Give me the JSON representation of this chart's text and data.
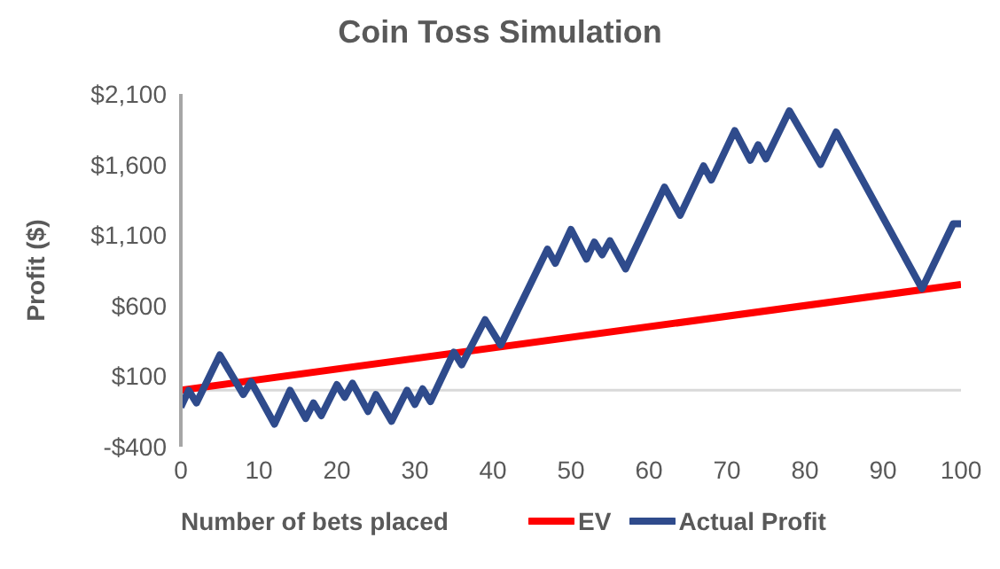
{
  "chart_data": {
    "type": "line",
    "title": "Coin Toss Simulation",
    "xlabel": "Number of bets placed",
    "ylabel": "Profit ($)",
    "xlim": [
      0,
      100
    ],
    "xticks": [
      0,
      10,
      20,
      30,
      40,
      50,
      60,
      70,
      80,
      90,
      100
    ],
    "ylim": [
      -400,
      2100
    ],
    "yticks": [
      {
        "value": -400,
        "label": "-$400"
      },
      {
        "value": 100,
        "label": "$100"
      },
      {
        "value": 600,
        "label": "$600"
      },
      {
        "value": 1100,
        "label": "$1,100"
      },
      {
        "value": 1600,
        "label": "$1,600"
      },
      {
        "value": 2100,
        "label": "$2,100"
      }
    ],
    "grid": false,
    "legend": "bottom",
    "marker": "none",
    "line_style": "solid",
    "ref_lines": [
      {
        "axis": "y",
        "value": 0,
        "color": "#d9d9d9"
      }
    ],
    "series": [
      {
        "name": "EV",
        "color": "#ff0000",
        "x": [
          0,
          100
        ],
        "values": [
          0,
          750
        ]
      },
      {
        "name": "Actual Profit",
        "color": "#2f4b8c",
        "x": [
          0,
          1,
          2,
          5,
          8,
          9,
          12,
          14,
          16,
          17,
          18,
          20,
          21,
          22,
          24,
          25,
          27,
          29,
          30,
          31,
          32,
          35,
          36,
          39,
          41,
          47,
          48,
          50,
          52,
          53,
          54,
          55,
          57,
          62,
          64,
          67,
          68,
          71,
          73,
          74,
          75,
          78,
          82,
          84,
          95,
          99,
          100
        ],
        "values": [
          -120,
          0,
          -90,
          250,
          -30,
          60,
          -240,
          0,
          -200,
          -90,
          -180,
          40,
          -50,
          50,
          -150,
          -30,
          -220,
          0,
          -100,
          10,
          -80,
          270,
          180,
          500,
          320,
          1000,
          900,
          1140,
          930,
          1050,
          960,
          1060,
          860,
          1440,
          1240,
          1590,
          1490,
          1840,
          1630,
          1740,
          1640,
          1980,
          1600,
          1830,
          720,
          1180,
          1180
        ]
      }
    ]
  }
}
